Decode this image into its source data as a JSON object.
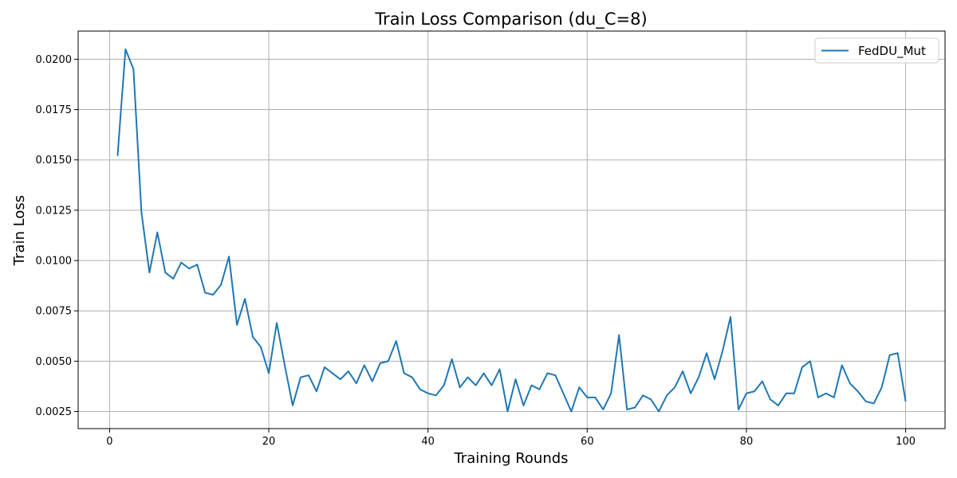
{
  "chart_data": {
    "type": "line",
    "title": "Train Loss Comparison (du_C=8)",
    "xlabel": "Training Rounds",
    "ylabel": "Train Loss",
    "xlim": [
      -3.95,
      104.95
    ],
    "ylim": [
      0.00165,
      0.0214
    ],
    "xticks": [
      0,
      20,
      40,
      60,
      80,
      100
    ],
    "xtick_labels": [
      "0",
      "20",
      "40",
      "60",
      "80",
      "100"
    ],
    "yticks": [
      0.0025,
      0.005,
      0.0075,
      0.01,
      0.0125,
      0.015,
      0.0175,
      0.02
    ],
    "ytick_labels": [
      "0.0025",
      "0.0050",
      "0.0075",
      "0.0100",
      "0.0125",
      "0.0150",
      "0.0175",
      "0.0200"
    ],
    "grid": true,
    "legend_position": "top-right",
    "series": [
      {
        "name": "FedDU_Mut",
        "color": "#1f77b4",
        "x": [
          1,
          2,
          3,
          4,
          5,
          6,
          7,
          8,
          9,
          10,
          11,
          12,
          13,
          14,
          15,
          16,
          17,
          18,
          19,
          20,
          21,
          22,
          23,
          24,
          25,
          26,
          27,
          28,
          29,
          30,
          31,
          32,
          33,
          34,
          35,
          36,
          37,
          38,
          39,
          40,
          41,
          42,
          43,
          44,
          45,
          46,
          47,
          48,
          49,
          50,
          51,
          52,
          53,
          54,
          55,
          56,
          57,
          58,
          59,
          60,
          61,
          62,
          63,
          64,
          65,
          66,
          67,
          68,
          69,
          70,
          71,
          72,
          73,
          74,
          75,
          76,
          77,
          78,
          79,
          80,
          81,
          82,
          83,
          84,
          85,
          86,
          87,
          88,
          89,
          90,
          91,
          92,
          93,
          94,
          95,
          96,
          97,
          98,
          99,
          100
        ],
        "values": [
          0.0152,
          0.0205,
          0.0195,
          0.0124,
          0.0094,
          0.0114,
          0.0094,
          0.0091,
          0.0099,
          0.0096,
          0.0098,
          0.0084,
          0.0083,
          0.0088,
          0.0102,
          0.0068,
          0.0081,
          0.0062,
          0.0057,
          0.0044,
          0.0069,
          0.0048,
          0.0028,
          0.0042,
          0.0043,
          0.0035,
          0.0047,
          0.0044,
          0.0041,
          0.0045,
          0.0039,
          0.0048,
          0.004,
          0.0049,
          0.005,
          0.006,
          0.0044,
          0.0042,
          0.0036,
          0.0034,
          0.0033,
          0.0038,
          0.0051,
          0.0037,
          0.0042,
          0.0038,
          0.0044,
          0.0038,
          0.0046,
          0.0025,
          0.0041,
          0.0028,
          0.0038,
          0.0036,
          0.0044,
          0.0043,
          0.0034,
          0.0025,
          0.0037,
          0.0032,
          0.0032,
          0.0026,
          0.0034,
          0.0063,
          0.0026,
          0.0027,
          0.0033,
          0.0031,
          0.0025,
          0.0033,
          0.0037,
          0.0045,
          0.0034,
          0.0042,
          0.0054,
          0.0041,
          0.0055,
          0.0072,
          0.0026,
          0.0034,
          0.0035,
          0.004,
          0.0031,
          0.0028,
          0.0034,
          0.0034,
          0.0047,
          0.005,
          0.0032,
          0.0034,
          0.0032,
          0.0048,
          0.0039,
          0.0035,
          0.003,
          0.0029,
          0.0037,
          0.0053,
          0.0054,
          0.003
        ]
      }
    ]
  }
}
